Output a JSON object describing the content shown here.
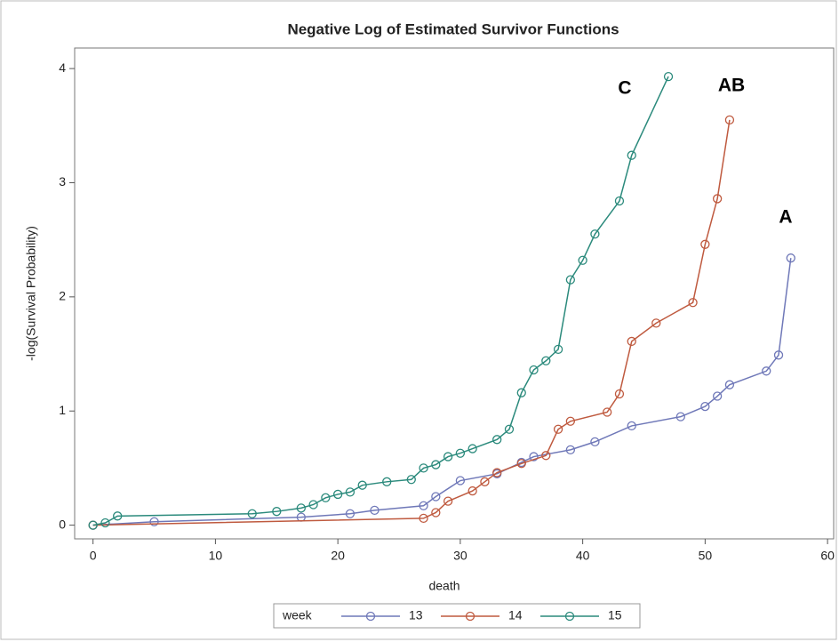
{
  "chart_data": {
    "type": "line",
    "title": "Negative Log of Estimated Survivor Functions",
    "x_label": "death",
    "y_label": "-log(Survival Probability)",
    "xlim": [
      -1.5,
      60.5
    ],
    "ylim": [
      -0.12,
      4.18
    ],
    "xticks": [
      0,
      10,
      20,
      30,
      40,
      50,
      60
    ],
    "yticks": [
      0,
      1,
      2,
      3,
      4
    ],
    "legend_title": "week",
    "legend_position": "bottom",
    "annotations": [
      "C",
      "AB",
      "A"
    ],
    "series": [
      {
        "name": "13",
        "color": "#6f78b8",
        "x": [
          0,
          5,
          17,
          21,
          23,
          27,
          28,
          30,
          33,
          35,
          36,
          39,
          41,
          44,
          48,
          50,
          51,
          52,
          55,
          56,
          57
        ],
        "values": [
          0,
          0.03,
          0.07,
          0.1,
          0.13,
          0.17,
          0.25,
          0.39,
          0.45,
          0.55,
          0.6,
          0.66,
          0.73,
          0.87,
          0.95,
          1.04,
          1.13,
          1.23,
          1.35,
          1.49,
          2.34
        ]
      },
      {
        "name": "14",
        "color": "#bf5a3f",
        "x": [
          0,
          27,
          28,
          29,
          31,
          32,
          33,
          35,
          37,
          38,
          39,
          42,
          43,
          44,
          46,
          49,
          50,
          51,
          52
        ],
        "values": [
          0,
          0.06,
          0.11,
          0.21,
          0.3,
          0.38,
          0.46,
          0.54,
          0.61,
          0.84,
          0.91,
          0.99,
          1.15,
          1.61,
          1.77,
          1.95,
          2.46,
          2.86,
          3.55
        ]
      },
      {
        "name": "15",
        "color": "#2b8a7c",
        "x": [
          0,
          1,
          2,
          13,
          15,
          17,
          18,
          19,
          20,
          21,
          22,
          24,
          26,
          27,
          28,
          29,
          30,
          31,
          33,
          34,
          35,
          36,
          37,
          38,
          39,
          40,
          41,
          43,
          44,
          47
        ],
        "values": [
          0,
          0.02,
          0.08,
          0.1,
          0.12,
          0.15,
          0.18,
          0.24,
          0.27,
          0.29,
          0.35,
          0.38,
          0.4,
          0.5,
          0.53,
          0.6,
          0.63,
          0.67,
          0.75,
          0.84,
          1.16,
          1.36,
          1.44,
          1.54,
          2.15,
          2.32,
          2.55,
          2.84,
          3.24,
          3.93
        ]
      }
    ]
  }
}
